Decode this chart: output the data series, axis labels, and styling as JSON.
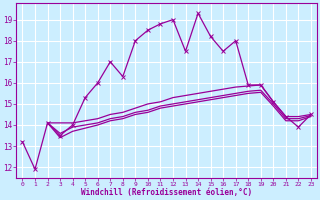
{
  "xlabel": "Windchill (Refroidissement éolien,°C)",
  "ylabel": "",
  "xlim": [
    -0.5,
    23.5
  ],
  "ylim": [
    11.5,
    19.8
  ],
  "xticks": [
    0,
    1,
    2,
    3,
    4,
    5,
    6,
    7,
    8,
    9,
    10,
    11,
    12,
    13,
    14,
    15,
    16,
    17,
    18,
    19,
    20,
    21,
    22,
    23
  ],
  "yticks": [
    12,
    13,
    14,
    15,
    16,
    17,
    18,
    19
  ],
  "bg_color": "#cceeff",
  "grid_color": "#ffffff",
  "line_color": "#990099",
  "lines": [
    {
      "x": [
        0,
        1,
        2,
        3,
        4,
        5,
        6,
        7,
        8,
        9,
        10,
        11,
        12,
        13,
        14,
        15,
        16,
        17,
        18,
        19,
        20,
        21,
        22,
        23
      ],
      "y": [
        13.2,
        11.9,
        14.1,
        13.5,
        14.0,
        15.3,
        16.0,
        17.0,
        16.3,
        18.0,
        18.5,
        18.8,
        19.0,
        17.5,
        19.3,
        18.2,
        17.5,
        18.0,
        15.9,
        15.9,
        15.1,
        14.4,
        13.9,
        14.5
      ],
      "marker": "x",
      "lw": 0.9
    },
    {
      "x": [
        2,
        3,
        4,
        5,
        6,
        7,
        8,
        9,
        10,
        11,
        12,
        13,
        14,
        15,
        16,
        17,
        18,
        19,
        20,
        21,
        22,
        23
      ],
      "y": [
        14.1,
        14.1,
        14.1,
        14.2,
        14.3,
        14.5,
        14.6,
        14.8,
        15.0,
        15.1,
        15.3,
        15.4,
        15.5,
        15.6,
        15.7,
        15.8,
        15.85,
        15.9,
        15.1,
        14.4,
        14.4,
        14.5
      ],
      "marker": null,
      "lw": 0.9
    },
    {
      "x": [
        2,
        3,
        4,
        5,
        6,
        7,
        8,
        9,
        10,
        11,
        12,
        13,
        14,
        15,
        16,
        17,
        18,
        19,
        20,
        21,
        22,
        23
      ],
      "y": [
        14.1,
        13.6,
        13.9,
        14.0,
        14.1,
        14.3,
        14.4,
        14.6,
        14.7,
        14.9,
        15.0,
        15.1,
        15.2,
        15.3,
        15.4,
        15.5,
        15.6,
        15.65,
        15.0,
        14.3,
        14.3,
        14.45
      ],
      "marker": null,
      "lw": 0.9
    },
    {
      "x": [
        2,
        3,
        4,
        5,
        6,
        7,
        8,
        9,
        10,
        11,
        12,
        13,
        14,
        15,
        16,
        17,
        18,
        19,
        20,
        21,
        22,
        23
      ],
      "y": [
        14.1,
        13.4,
        13.7,
        13.85,
        14.0,
        14.2,
        14.3,
        14.5,
        14.6,
        14.8,
        14.9,
        15.0,
        15.1,
        15.2,
        15.3,
        15.4,
        15.5,
        15.55,
        14.9,
        14.2,
        14.2,
        14.4
      ],
      "marker": null,
      "lw": 0.9
    }
  ]
}
